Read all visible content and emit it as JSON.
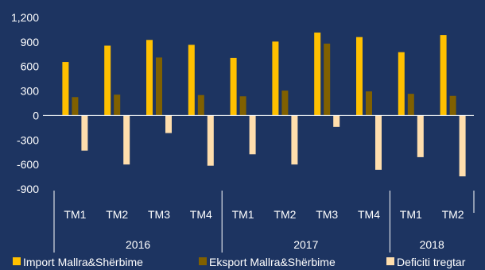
{
  "chart_data": {
    "type": "bar",
    "title": "",
    "xlabel": "",
    "ylabel": "",
    "ylim": [
      -900,
      1200
    ],
    "yticks": [
      1200,
      900,
      600,
      300,
      0,
      -300,
      -600,
      -900
    ],
    "ytick_labels": [
      "1,200",
      "900",
      "600",
      "300",
      "0",
      "-300",
      "-600",
      "-900"
    ],
    "categories": [
      "TM1",
      "TM2",
      "TM3",
      "TM4",
      "TM1",
      "TM2",
      "TM3",
      "TM4",
      "TM1",
      "TM2"
    ],
    "groups": [
      {
        "label": "2016",
        "count": 4
      },
      {
        "label": "2017",
        "count": 4
      },
      {
        "label": "2018",
        "count": 2
      }
    ],
    "series": [
      {
        "name": "Import Mallra&Shërbime",
        "color": "#ffc000",
        "values": [
          655,
          855,
          925,
          865,
          705,
          905,
          1015,
          960,
          775,
          985
        ]
      },
      {
        "name": "Eksport Mallra&Shërbime",
        "color": "#806000",
        "values": [
          225,
          255,
          710,
          250,
          235,
          305,
          880,
          295,
          265,
          240
        ]
      },
      {
        "name": "Deficiti tregtar",
        "color": "#ffdead",
        "values": [
          -430,
          -600,
          -215,
          -615,
          -475,
          -600,
          -140,
          -665,
          -510,
          -745
        ]
      }
    ],
    "legend_position": "bottom",
    "grid": false
  }
}
